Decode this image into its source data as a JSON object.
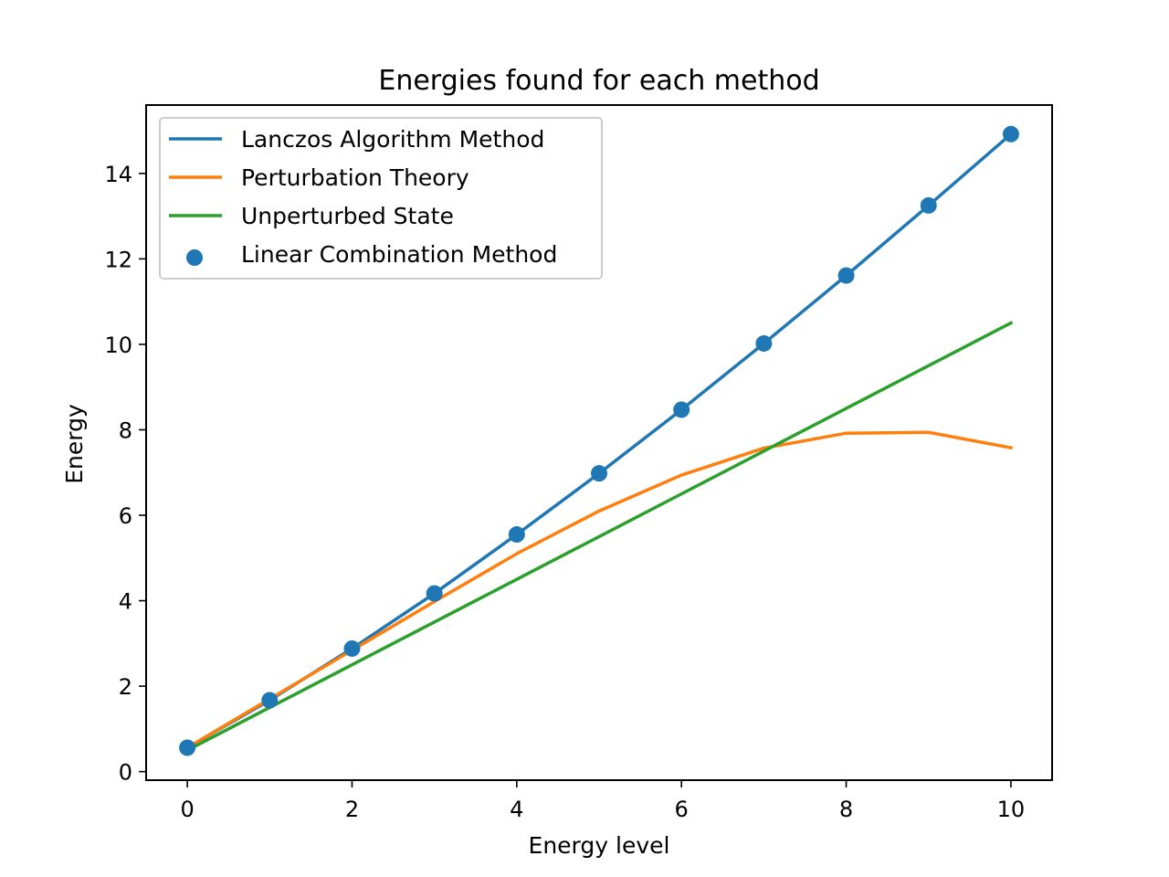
{
  "chart_data": {
    "type": "line",
    "title": "Energies found for each method",
    "xlabel": "Energy level",
    "ylabel": "Energy",
    "xlim": [
      -0.5,
      10.5
    ],
    "ylim": [
      -0.2,
      15.6
    ],
    "xticks": [
      0,
      2,
      4,
      6,
      8,
      10
    ],
    "yticks": [
      0,
      2,
      4,
      6,
      8,
      10,
      12,
      14
    ],
    "grid": false,
    "legend_position": "upper-left",
    "x": [
      0,
      1,
      2,
      3,
      4,
      5,
      6,
      7,
      8,
      9,
      10
    ],
    "series": [
      {
        "name": "Lanczos Algorithm Method",
        "kind": "line",
        "color": "#1f77b4",
        "values": [
          0.56,
          1.67,
          2.88,
          4.17,
          5.55,
          6.98,
          8.47,
          10.02,
          11.61,
          13.25,
          14.92
        ]
      },
      {
        "name": "Perturbation Theory",
        "kind": "line",
        "color": "#ff7f0e",
        "values": [
          0.56,
          1.7,
          2.84,
          3.98,
          5.1,
          6.1,
          6.94,
          7.57,
          7.92,
          7.94,
          7.58
        ]
      },
      {
        "name": "Unperturbed State",
        "kind": "line",
        "color": "#2ca02c",
        "values": [
          0.5,
          1.5,
          2.5,
          3.5,
          4.5,
          5.5,
          6.5,
          7.5,
          8.5,
          9.5,
          10.5
        ]
      },
      {
        "name": "Linear Combination Method",
        "kind": "scatter",
        "color": "#1f77b4",
        "values": [
          0.56,
          1.67,
          2.88,
          4.17,
          5.55,
          6.98,
          8.47,
          10.02,
          11.61,
          13.25,
          14.92
        ]
      }
    ]
  }
}
